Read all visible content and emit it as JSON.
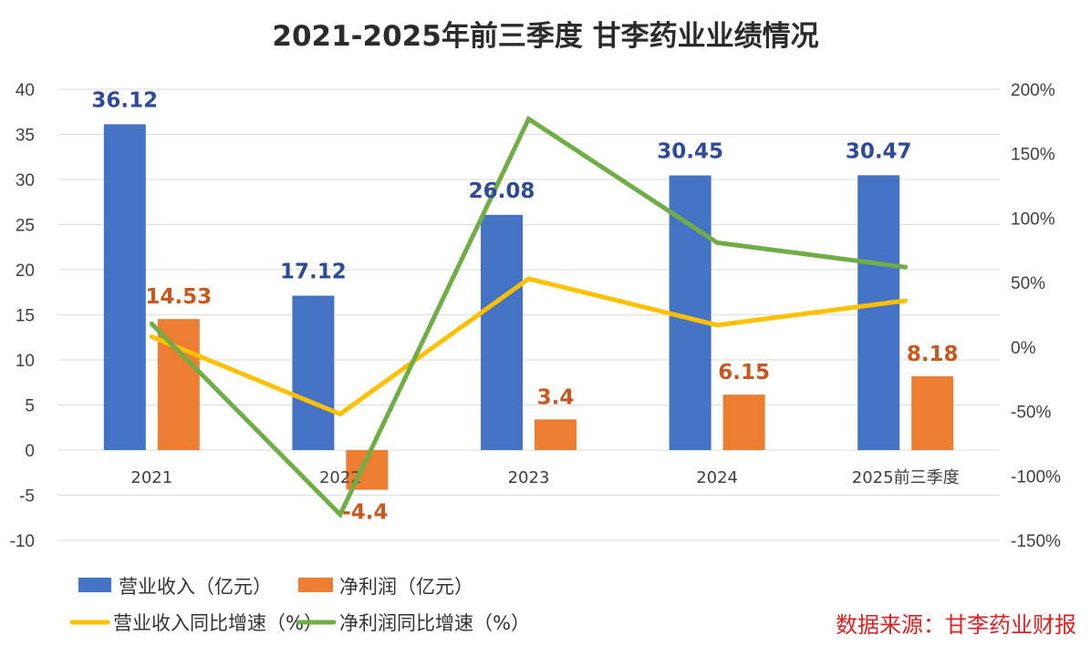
{
  "colors": {
    "revenue": "#4472c4",
    "net_profit": "#ed7d31",
    "revenue_growth": "#ffc000",
    "net_profit_growth": "#70ad47",
    "revenue_label": "#2f4a9a",
    "net_profit_label": "#c8581c",
    "source": "#e02020"
  },
  "source_text": "数据来源：甘李药业财报",
  "chart_data": {
    "type": "bar",
    "title": "2021-2025年前三季度 甘李药业业绩情况",
    "categories": [
      "2021",
      "2022",
      "2023",
      "2024",
      "2025前三季度"
    ],
    "xlabel": "",
    "ylabel": "",
    "ylim": [
      -10,
      40
    ],
    "yticks": [
      "40",
      "35",
      "30",
      "25",
      "20",
      "15",
      "10",
      "5",
      "0",
      "-5",
      "-10"
    ],
    "y2lim": [
      -150,
      200
    ],
    "y2ticks": [
      "200%",
      "150%",
      "100%",
      "50%",
      "0%",
      "-50%",
      "-100%",
      "-150%"
    ],
    "grid": true,
    "legend_position": "bottom-left",
    "series": [
      {
        "name": "营业收入（亿元）",
        "type": "bar",
        "axis": "left",
        "values": [
          36.12,
          17.12,
          26.08,
          30.45,
          30.47
        ],
        "labels": [
          "36.12",
          "17.12",
          "26.08",
          "30.45",
          "30.47"
        ]
      },
      {
        "name": "净利润（亿元）",
        "type": "bar",
        "axis": "left",
        "values": [
          14.53,
          -4.4,
          3.4,
          6.15,
          8.18
        ],
        "labels": [
          "14.53",
          "-4.4",
          "3.4",
          "6.15",
          "8.18"
        ]
      },
      {
        "name": "营业收入同比增速（%）",
        "type": "line",
        "axis": "right",
        "values": [
          8,
          -52,
          53,
          17,
          36
        ]
      },
      {
        "name": "净利润同比增速（%）",
        "type": "line",
        "axis": "right",
        "values": [
          18,
          -130,
          177,
          81,
          62
        ]
      }
    ]
  }
}
